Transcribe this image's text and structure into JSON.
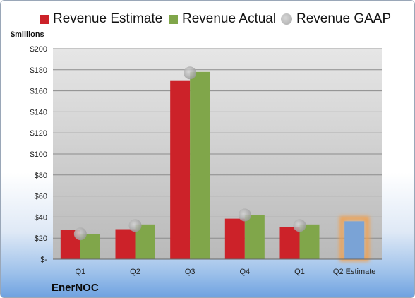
{
  "chart_data": {
    "type": "bar",
    "unit_label": "$millions",
    "categories": [
      "Q1",
      "Q2",
      "Q3",
      "Q4",
      "Q1",
      "Q2 Estimate"
    ],
    "series": [
      {
        "name": "Revenue Estimate",
        "color": "#cc2229",
        "values": [
          28,
          28.5,
          170,
          38.5,
          30.5,
          null
        ]
      },
      {
        "name": "Revenue Actual",
        "color": "#80a64a",
        "values": [
          24,
          33,
          178,
          42,
          33,
          null
        ]
      },
      {
        "name": "Revenue GAAP",
        "color": "#b3b3b3",
        "values": [
          24,
          32,
          177,
          42,
          32,
          null
        ]
      }
    ],
    "forecast": {
      "category_index": 5,
      "value": 36,
      "color": "#7aa3d6",
      "glow_color": "#f0a050"
    },
    "ylim": [
      0,
      200
    ],
    "yticks": [
      0,
      20,
      40,
      60,
      80,
      100,
      120,
      140,
      160,
      180,
      200
    ],
    "ytick_labels": [
      "$-",
      "$20",
      "$40",
      "$60",
      "$80",
      "$100",
      "$120",
      "$140",
      "$160",
      "$180",
      "$200"
    ],
    "grid": true,
    "legend_position": "top"
  },
  "footer": {
    "company": "EnerNOC"
  }
}
